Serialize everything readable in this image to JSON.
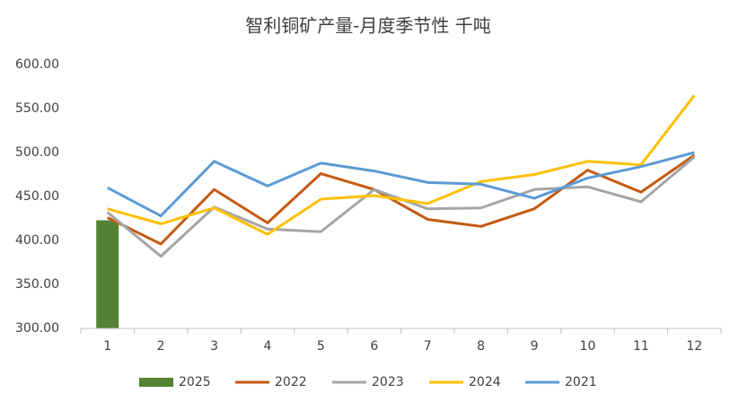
{
  "chart_data": {
    "type": "line",
    "title": "智利铜矿产量-月度季节性 千吨",
    "categories": [
      "1",
      "2",
      "3",
      "4",
      "5",
      "6",
      "7",
      "8",
      "9",
      "10",
      "11",
      "12"
    ],
    "ylim": [
      300,
      600
    ],
    "yticks": [
      {
        "value": 300,
        "label": "300.00"
      },
      {
        "value": 350,
        "label": "350.00"
      },
      {
        "value": 400,
        "label": "400.00"
      },
      {
        "value": 450,
        "label": "450.00"
      },
      {
        "value": 500,
        "label": "500.00"
      },
      {
        "value": 550,
        "label": "550.00"
      },
      {
        "value": 600,
        "label": "600.00"
      }
    ],
    "grid": false,
    "legend": "bottom",
    "series": [
      {
        "name": "2025",
        "type": "bar",
        "color": "#548235",
        "values": [
          423,
          null,
          null,
          null,
          null,
          null,
          null,
          null,
          null,
          null,
          null,
          null
        ]
      },
      {
        "name": "2022",
        "type": "line",
        "color": "#c55a11",
        "values": [
          426,
          396,
          458,
          420,
          476,
          458,
          424,
          416,
          436,
          480,
          455,
          497
        ]
      },
      {
        "name": "2023",
        "type": "line",
        "color": "#a5a5a5",
        "values": [
          432,
          382,
          438,
          413,
          410,
          458,
          436,
          437,
          458,
          461,
          444,
          495
        ]
      },
      {
        "name": "2024",
        "type": "line",
        "color": "#ffc000",
        "values": [
          436,
          419,
          437,
          407,
          447,
          451,
          442,
          467,
          475,
          490,
          486,
          565
        ]
      },
      {
        "name": "2021",
        "type": "line",
        "color": "#5b9bd5",
        "values": [
          460,
          428,
          490,
          462,
          488,
          479,
          466,
          464,
          448,
          471,
          484,
          500
        ]
      }
    ]
  }
}
